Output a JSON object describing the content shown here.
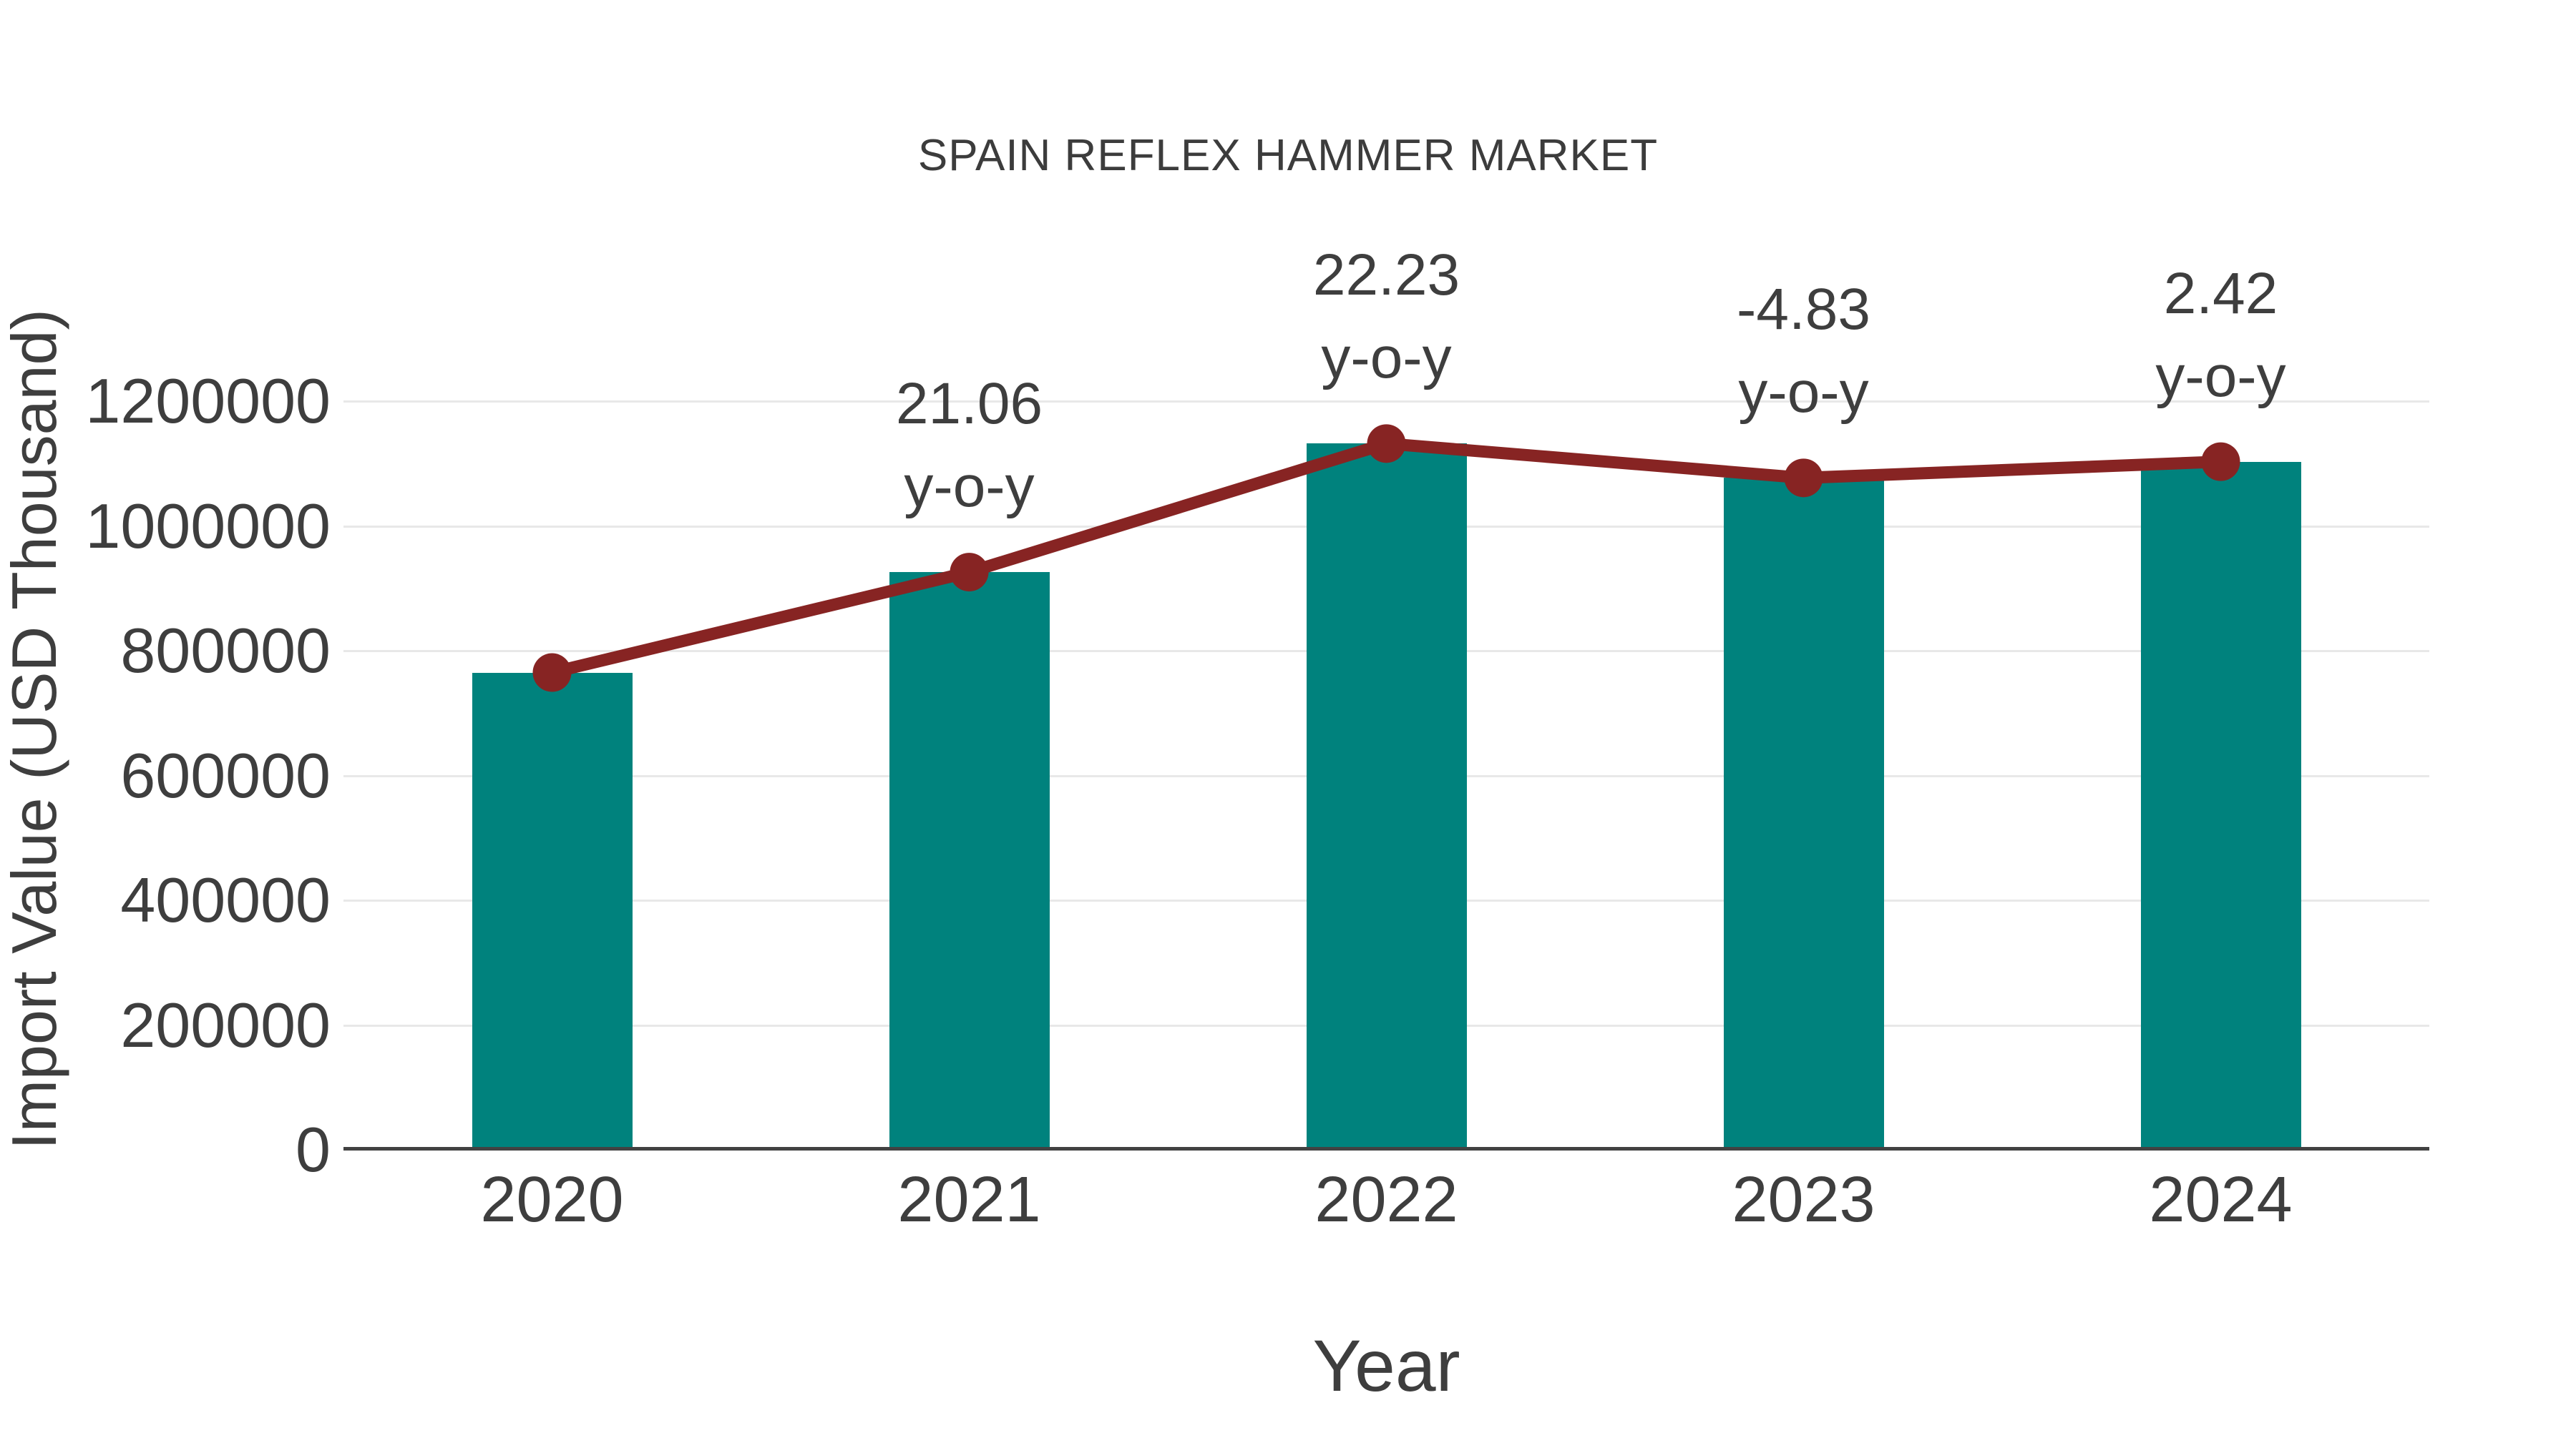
{
  "title": "SPAIN REFLEX HAMMER MARKET",
  "chart_data": {
    "type": "bar",
    "title": "SPAIN REFLEX HAMMER MARKET",
    "xlabel": "Year",
    "ylabel": "Import Value (USD Thousand)",
    "categories": [
      "2020",
      "2021",
      "2022",
      "2023",
      "2024"
    ],
    "series": [
      {
        "name": "import-value-bars",
        "type": "bar",
        "values": [
          765000,
          926000,
          1132000,
          1077000,
          1103000
        ]
      },
      {
        "name": "import-value-trend-line",
        "type": "line",
        "values": [
          765000,
          926000,
          1132000,
          1077000,
          1103000
        ]
      }
    ],
    "annotations": {
      "yoy_values": [
        null,
        "21.06",
        "22.23",
        "-4.83",
        "2.42"
      ],
      "yoy_suffix": "y-o-y"
    },
    "yticks": [
      0,
      200000,
      400000,
      600000,
      800000,
      1000000,
      1200000
    ],
    "ylim": [
      0,
      1260000
    ],
    "grid": "horizontal",
    "legend": "none",
    "colors": {
      "bar": "#00827D",
      "line": "#872423",
      "marker": "#872423",
      "grid": "#E8E8E8",
      "axis": "#424242",
      "text": "#3E3E3E"
    }
  }
}
